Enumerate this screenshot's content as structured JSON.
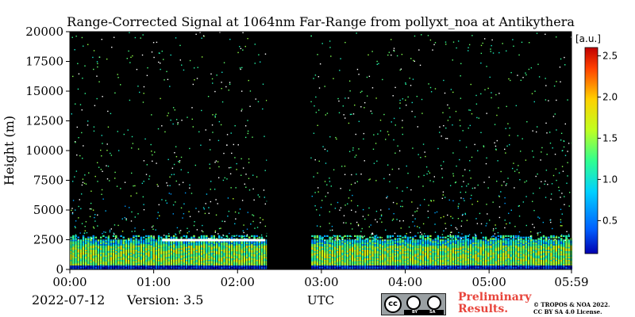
{
  "chart_data": {
    "type": "heatmap",
    "title": "Range-Corrected Signal at 1064nm Far-Range from pollyxt_noa at Antikythera",
    "xlabel": "UTC",
    "ylabel": "Height (m)",
    "x_ticks": [
      "00:00",
      "01:00",
      "02:00",
      "03:00",
      "04:00",
      "05:00",
      "05:59"
    ],
    "x_tick_hours": [
      0,
      1,
      2,
      3,
      4,
      5,
      5.983
    ],
    "xlim_hours": [
      0,
      5.983
    ],
    "y_ticks": [
      0,
      2500,
      5000,
      7500,
      10000,
      12500,
      15000,
      17500,
      20000
    ],
    "ylim": [
      0,
      20000
    ],
    "colorbar": {
      "label": "[a.u.]",
      "range": [
        0.1,
        2.6
      ],
      "ticks": [
        0.5,
        1.0,
        1.5,
        2.0,
        2.5
      ],
      "tick_labels": [
        "0.5",
        "1.0",
        "1.5",
        "2.0",
        "2.5"
      ],
      "colormap": "jet"
    },
    "no_data_intervals_hours": [
      [
        2.35,
        2.87
      ]
    ],
    "features": {
      "boundary_layer_top_m": 2500,
      "elevated_strong_layer": {
        "start_hour": 1.1,
        "end_hour": 2.33,
        "height_m": 2500,
        "value": 2.5
      }
    },
    "background_color": "#000000"
  },
  "footer": {
    "date": "2022-07-12",
    "version": "Version: 3.5",
    "preliminary_line1": "Preliminary",
    "preliminary_line2": "Results.",
    "copyright_line1": "© TROPOS & NOA 2022.",
    "copyright_line2": "CC BY SA 4.0 License."
  },
  "license_badge": {
    "cc": "cc",
    "by": "BY",
    "sa": "SA"
  },
  "colors": {
    "preliminary": "#e8453c",
    "plot_background": "#000000"
  }
}
